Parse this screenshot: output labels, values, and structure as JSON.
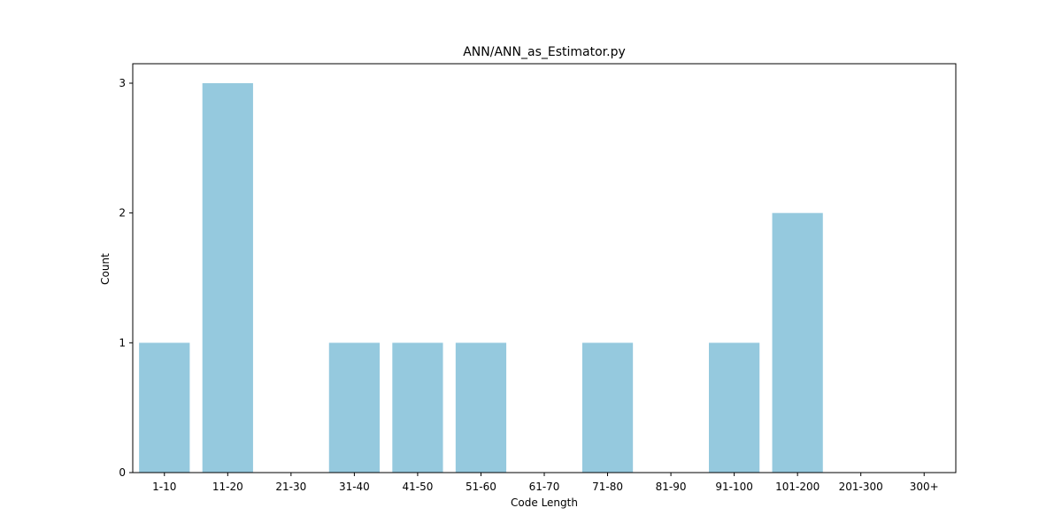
{
  "chart_data": {
    "type": "bar",
    "title": "ANN/ANN_as_Estimator.py",
    "xlabel": "Code Length",
    "ylabel": "Count",
    "categories": [
      "1-10",
      "11-20",
      "21-30",
      "31-40",
      "41-50",
      "51-60",
      "61-70",
      "71-80",
      "81-90",
      "91-100",
      "101-200",
      "201-300",
      "300+"
    ],
    "values": [
      1,
      3,
      0,
      1,
      1,
      1,
      0,
      1,
      0,
      1,
      2,
      0,
      0
    ],
    "yticks": [
      0,
      1,
      2,
      3
    ],
    "ylim": [
      0,
      3.15
    ],
    "grid": false,
    "legend": "none",
    "bar_color": "#95c9de"
  }
}
